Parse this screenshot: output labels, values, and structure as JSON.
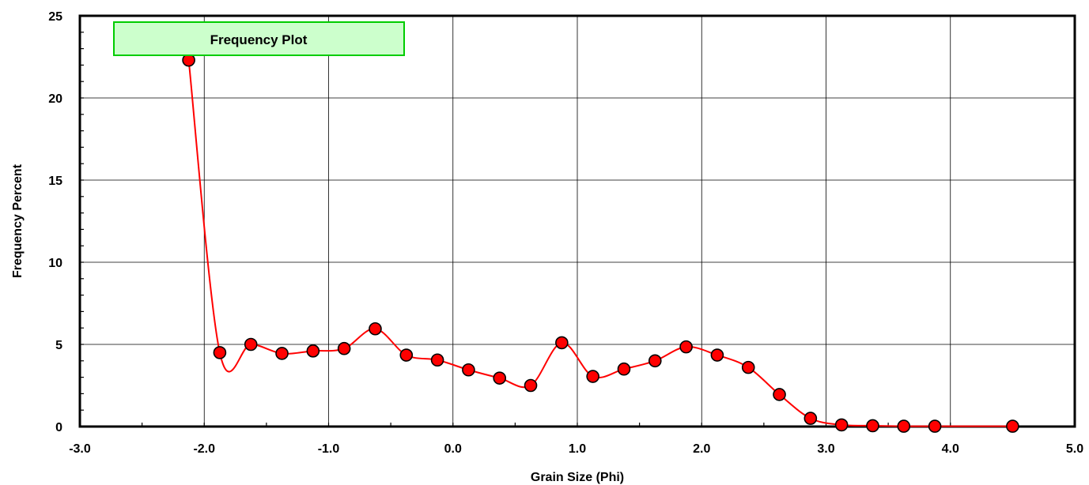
{
  "chart_data": {
    "type": "line",
    "legend_label": "Frequency Plot",
    "legend_position": "top-left",
    "xlabel": "Grain Size (Phi)",
    "ylabel": "Frequency Percent",
    "xlim": [
      -3.0,
      5.0
    ],
    "ylim": [
      0,
      25
    ],
    "x_ticks": [
      -3.0,
      -2.0,
      -1.0,
      0.0,
      1.0,
      2.0,
      3.0,
      4.0,
      5.0
    ],
    "x_tick_labels": [
      "-3.0",
      "-2.0",
      "-1.0",
      "0.0",
      "1.0",
      "2.0",
      "3.0",
      "4.0",
      "5.0"
    ],
    "y_ticks": [
      0,
      5,
      10,
      15,
      20,
      25
    ],
    "y_tick_labels": [
      "0",
      "5",
      "10",
      "15",
      "20",
      "25"
    ],
    "grid": true,
    "colors": {
      "line": "#ff0000",
      "marker_fill": "#ff0000",
      "marker_stroke": "#000000",
      "legend_fill": "#ccffcc",
      "legend_border": "#00cc00"
    },
    "series": [
      {
        "x": [
          -2.125,
          -1.875,
          -1.625,
          -1.375,
          -1.125,
          -0.875,
          -0.625,
          -0.375,
          -0.125,
          0.125,
          0.375,
          0.625,
          0.875,
          1.125,
          1.375,
          1.625,
          1.875,
          2.125,
          2.375,
          2.625,
          2.875,
          3.125,
          3.375,
          3.625,
          3.875,
          4.5
        ],
        "y": [
          22.3,
          4.5,
          5.0,
          4.45,
          4.6,
          4.75,
          5.95,
          4.35,
          4.05,
          3.45,
          2.95,
          2.5,
          5.1,
          3.05,
          3.5,
          4.0,
          4.85,
          4.35,
          3.6,
          1.95,
          0.5,
          0.1,
          0.05,
          0.02,
          0.02,
          0.02
        ]
      }
    ]
  }
}
